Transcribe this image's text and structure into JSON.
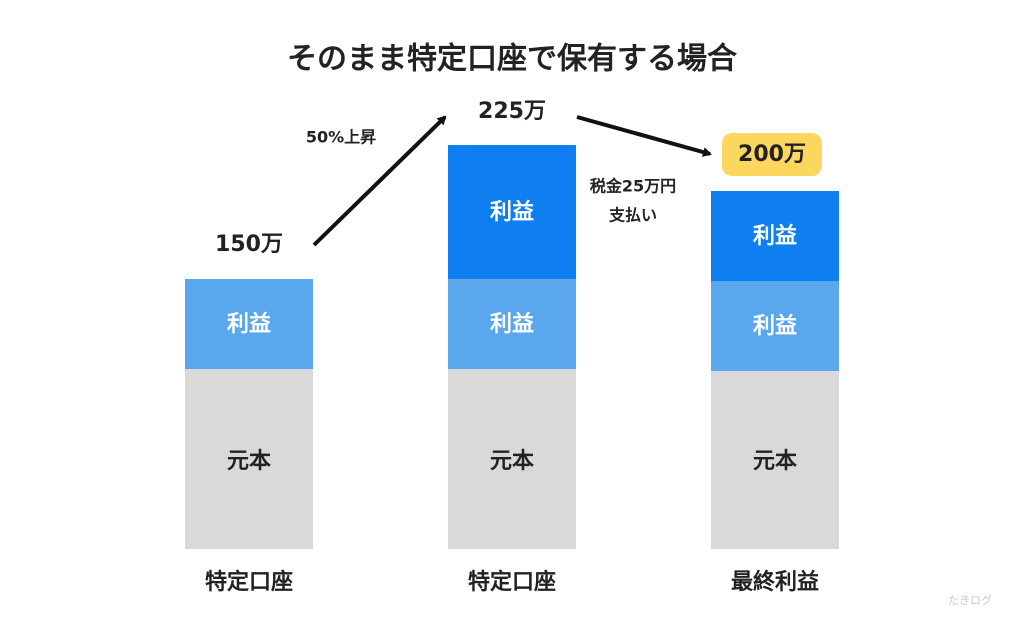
{
  "title": "そのまま特定口座で保有する場合",
  "columns": [
    {
      "label": "特定口座",
      "total": "150万",
      "segments": [
        "元本",
        "利益"
      ]
    },
    {
      "label": "特定口座",
      "total": "225万",
      "segments": [
        "元本",
        "利益",
        "利益"
      ]
    },
    {
      "label": "最終利益",
      "total": "200万",
      "segments": [
        "元本",
        "利益",
        "利益"
      ]
    }
  ],
  "annotations": {
    "rise": "50%上昇",
    "tax": [
      "税金25万円",
      "支払い"
    ]
  },
  "watermark": "たきログ"
}
